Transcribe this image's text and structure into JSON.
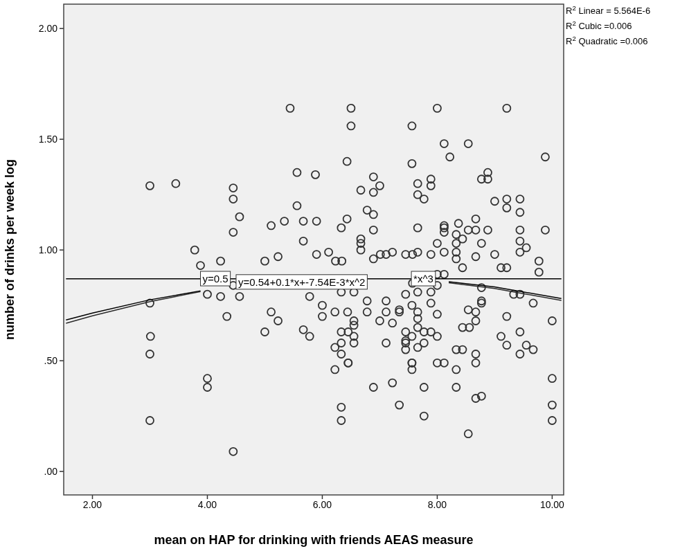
{
  "chart_data": {
    "type": "scatter",
    "xlabel": "mean on HAP for drinking with friends AEAS measure",
    "ylabel": "number of drinks per week log",
    "xlim": [
      1.5,
      10.2
    ],
    "ylim": [
      -0.106,
      2.11
    ],
    "xticks": [
      {
        "value": 2,
        "label": "2.00"
      },
      {
        "value": 4,
        "label": "4.00"
      },
      {
        "value": 6,
        "label": "6.00"
      },
      {
        "value": 8,
        "label": "8.00"
      },
      {
        "value": 10,
        "label": "10.00"
      }
    ],
    "yticks": [
      {
        "value": 0,
        "label": ".00"
      },
      {
        "value": 0.5,
        "label": ".50"
      },
      {
        "value": 1,
        "label": "1.00"
      },
      {
        "value": 1.5,
        "label": "1.50"
      },
      {
        "value": 2,
        "label": "2.00"
      }
    ],
    "grid": false,
    "series": [
      {
        "marker": "circle",
        "color": "#333333",
        "x": [
          5.44,
          6.5,
          6.5,
          6.43,
          3.0,
          3.45,
          4.45,
          4.45,
          4.56,
          4.45,
          5.56,
          5.88,
          5.56,
          5.11,
          5.34,
          5.67,
          5.9,
          6.33,
          6.43,
          5.67,
          3.78,
          5.9,
          6.11,
          5.23,
          5.0,
          4.23,
          3.88,
          6.23,
          6.34,
          4.45,
          4.0,
          4.23,
          4.56,
          5.78,
          6.33,
          3.0,
          3.01,
          3.0,
          4.0,
          4.0,
          3.0,
          4.45,
          4.34,
          5.11,
          5.23,
          5.0,
          5.67,
          5.78,
          6.0,
          6.0,
          6.22,
          6.44,
          6.33,
          6.45,
          6.33,
          6.22,
          6.33,
          6.45,
          6.22,
          6.33,
          6.33,
          8.0,
          9.21,
          7.56,
          8.12,
          8.54,
          8.22,
          9.88,
          7.56,
          8.88,
          8.77,
          8.88,
          6.89,
          7.0,
          6.67,
          6.89,
          7.66,
          7.89,
          7.89,
          7.66,
          7.77,
          6.78,
          6.89,
          9.0,
          9.21,
          9.21,
          9.44,
          9.44,
          6.89,
          7.66,
          6.67,
          6.67,
          6.67,
          8.12,
          8.12,
          8.12,
          8.37,
          8.67,
          8.54,
          8.67,
          8.88,
          9.44,
          9.88,
          8.33,
          8.44,
          8.33,
          8.0,
          8.77,
          9.44,
          9.55,
          9.44,
          8.12,
          8.33,
          8.33,
          8.67,
          9.0,
          8.44,
          9.11,
          9.21,
          9.77,
          9.77,
          6.89,
          7.01,
          7.11,
          7.22,
          7.45,
          7.57,
          7.66,
          7.89,
          8.0,
          8.12,
          8.77,
          9.33,
          9.44,
          8.0,
          7.57,
          6.55,
          7.66,
          7.89,
          7.45,
          6.78,
          7.11,
          8.77,
          8.77,
          9.67,
          6.78,
          7.11,
          7.34,
          7.34,
          7.56,
          7.89,
          7.66,
          7.66,
          7.66,
          8.0,
          8.54,
          8.67,
          9.21,
          10.0,
          6.55,
          6.55,
          7.0,
          7.22,
          6.55,
          6.55,
          7.45,
          7.56,
          7.77,
          7.89,
          8.0,
          7.45,
          7.45,
          7.45,
          7.11,
          7.77,
          7.66,
          8.44,
          8.56,
          8.67,
          9.44,
          9.11,
          9.21,
          9.55,
          9.67,
          9.44,
          8.33,
          8.44,
          8.67,
          8.67,
          6.45,
          7.56,
          7.56,
          7.56,
          8.0,
          8.12,
          8.33,
          10.0,
          6.89,
          7.22,
          7.77,
          8.33,
          7.34,
          8.67,
          8.77,
          10.0,
          7.77,
          10.0,
          8.54
        ],
        "values": [
          1.64,
          1.64,
          1.56,
          1.4,
          1.29,
          1.3,
          1.28,
          1.23,
          1.15,
          1.08,
          1.35,
          1.34,
          1.2,
          1.11,
          1.13,
          1.13,
          1.13,
          1.1,
          1.14,
          1.04,
          1.0,
          0.98,
          0.99,
          0.97,
          0.95,
          0.95,
          0.93,
          0.95,
          0.95,
          0.84,
          0.8,
          0.79,
          0.79,
          0.79,
          0.81,
          0.76,
          0.61,
          0.53,
          0.42,
          0.38,
          0.23,
          0.09,
          0.7,
          0.72,
          0.68,
          0.63,
          0.64,
          0.61,
          0.75,
          0.7,
          0.72,
          0.72,
          0.63,
          0.63,
          0.58,
          0.56,
          0.53,
          0.49,
          0.46,
          0.29,
          0.23,
          1.64,
          1.64,
          1.56,
          1.48,
          1.48,
          1.42,
          1.42,
          1.39,
          1.35,
          1.32,
          1.32,
          1.33,
          1.29,
          1.27,
          1.26,
          1.3,
          1.32,
          1.29,
          1.25,
          1.23,
          1.18,
          1.16,
          1.22,
          1.23,
          1.19,
          1.23,
          1.17,
          1.09,
          1.1,
          1.05,
          1.03,
          1.0,
          1.11,
          1.1,
          1.08,
          1.12,
          1.14,
          1.09,
          1.09,
          1.09,
          1.09,
          1.09,
          1.07,
          1.05,
          1.03,
          1.03,
          1.03,
          1.04,
          1.01,
          0.99,
          0.99,
          0.99,
          0.96,
          0.97,
          0.98,
          0.92,
          0.92,
          0.92,
          0.95,
          0.9,
          0.96,
          0.98,
          0.98,
          0.99,
          0.98,
          0.98,
          0.99,
          0.98,
          0.89,
          0.89,
          0.83,
          0.8,
          0.8,
          0.84,
          0.85,
          0.81,
          0.81,
          0.81,
          0.8,
          0.77,
          0.77,
          0.77,
          0.76,
          0.76,
          0.72,
          0.72,
          0.73,
          0.72,
          0.75,
          0.76,
          0.72,
          0.69,
          0.65,
          0.71,
          0.73,
          0.72,
          0.7,
          0.68,
          0.68,
          0.66,
          0.68,
          0.67,
          0.61,
          0.58,
          0.63,
          0.61,
          0.63,
          0.63,
          0.61,
          0.59,
          0.58,
          0.55,
          0.58,
          0.58,
          0.56,
          0.65,
          0.65,
          0.68,
          0.63,
          0.61,
          0.57,
          0.57,
          0.55,
          0.53,
          0.55,
          0.55,
          0.53,
          0.49,
          0.49,
          0.49,
          0.49,
          0.46,
          0.49,
          0.49,
          0.46,
          0.42,
          0.38,
          0.4,
          0.38,
          0.38,
          0.3,
          0.33,
          0.34,
          0.3,
          0.25,
          0.23,
          0.17
        ]
      },
      {
        "type": "line",
        "color": "#000000",
        "x": [
          1.54,
          10.16
        ],
        "values": [
          0.87,
          0.87
        ]
      },
      {
        "type": "line",
        "color": "#000000",
        "x": [
          1.54,
          2,
          3,
          3.88,
          6,
          8.2,
          9,
          10.16
        ],
        "values": [
          0.684,
          0.715,
          0.775,
          0.815,
          null,
          0.857,
          0.833,
          0.781
        ]
      },
      {
        "type": "line",
        "color": "#2a2a2a",
        "x": [
          1.54,
          2,
          3,
          3.88,
          6,
          8.2,
          9,
          10.16
        ],
        "values": [
          0.669,
          0.703,
          0.767,
          0.812,
          null,
          0.852,
          0.826,
          0.772
        ]
      }
    ],
    "annotations": [
      "R$^{2}$ Linear = 5.564E-6",
      "R$^{2}$ Cubic =0.006",
      "R$^{2}$ Quadratic =0.006",
      {
        "text": "y=0.5",
        "x": 3.88,
        "y": 0.87
      },
      {
        "text": "y=0.54+0.1*x+-7.54E-3*x^2",
        "x": 4.5,
        "y": 0.855
      },
      {
        "text": "*x^3",
        "x": 7.55,
        "y": 0.87
      }
    ]
  }
}
